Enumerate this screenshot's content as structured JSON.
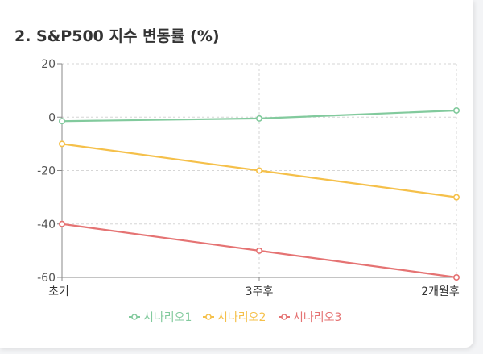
{
  "card": {
    "title": "2. S&P500 지수 변동률 (%)"
  },
  "chart_data": {
    "type": "line",
    "title": "2. S&P500 지수 변동률 (%)",
    "categories": [
      "초기",
      "3주후",
      "2개월후"
    ],
    "xlabel": "",
    "ylabel": "",
    "ylim": [
      -60,
      20
    ],
    "yticks": [
      20,
      0,
      -20,
      -40,
      -60
    ],
    "grid": true,
    "legend_position": "bottom",
    "series": [
      {
        "name": "시나리오1",
        "values": [
          -1.5,
          -0.5,
          2.5
        ],
        "color": "#82ca9d"
      },
      {
        "name": "시나리오2",
        "values": [
          -10,
          -20,
          -30
        ],
        "color": "#f5c04a"
      },
      {
        "name": "시나리오3",
        "values": [
          -40,
          -50,
          -60
        ],
        "color": "#e57373"
      }
    ]
  }
}
